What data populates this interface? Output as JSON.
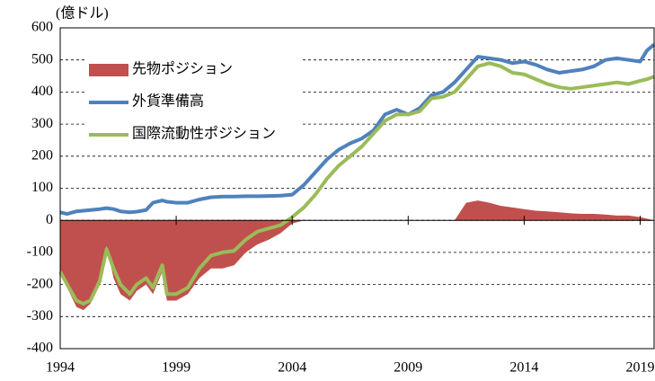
{
  "chart_data": {
    "type": "line",
    "y_label": "(億ドル)",
    "x": [
      1994,
      1994.3,
      1994.7,
      1995,
      1995.3,
      1995.7,
      1996,
      1996.3,
      1996.6,
      1997,
      1997.3,
      1997.7,
      1998,
      1998.4,
      1998.6,
      1999,
      1999.5,
      2000,
      2000.5,
      2001,
      2001.5,
      2002,
      2002.5,
      2003,
      2003.5,
      2004,
      2004.5,
      2005,
      2005.5,
      2006,
      2006.5,
      2007,
      2007.5,
      2008,
      2008.5,
      2009,
      2009.5,
      2010,
      2010.5,
      2011,
      2011.5,
      2012,
      2012.5,
      2013,
      2013.5,
      2014,
      2014.5,
      2015,
      2015.5,
      2016,
      2016.5,
      2017,
      2017.5,
      2018,
      2018.5,
      2019,
      2019.3,
      2019.6
    ],
    "series": [
      {
        "name": "先物ポジション",
        "kind": "area",
        "color": "#c0504d",
        "values": [
          -170,
          -210,
          -270,
          -280,
          -260,
          -200,
          -80,
          -180,
          -230,
          -250,
          -220,
          -200,
          -230,
          -160,
          -250,
          -250,
          -230,
          -180,
          -150,
          -150,
          -140,
          -100,
          -75,
          -60,
          -40,
          -10,
          0,
          0,
          0,
          0,
          0,
          0,
          0,
          0,
          0,
          0,
          0,
          0,
          0,
          0,
          55,
          62,
          55,
          45,
          40,
          35,
          30,
          28,
          25,
          22,
          20,
          20,
          18,
          15,
          15,
          10,
          5,
          0
        ]
      },
      {
        "name": "外貨準備高",
        "kind": "line",
        "color": "#4f81bd",
        "values": [
          25,
          20,
          28,
          30,
          32,
          35,
          38,
          35,
          28,
          25,
          27,
          32,
          55,
          62,
          58,
          55,
          55,
          65,
          72,
          74,
          74,
          75,
          75,
          76,
          77,
          80,
          110,
          150,
          190,
          220,
          240,
          255,
          280,
          330,
          345,
          330,
          350,
          390,
          400,
          430,
          470,
          510,
          505,
          500,
          490,
          495,
          485,
          470,
          460,
          465,
          470,
          480,
          500,
          505,
          500,
          495,
          530,
          548
        ]
      },
      {
        "name": "国際流動性ポジション",
        "kind": "line",
        "color": "#9bbb59",
        "values": [
          -160,
          -200,
          -250,
          -260,
          -250,
          -190,
          -90,
          -150,
          -200,
          -230,
          -200,
          -180,
          -210,
          -140,
          -230,
          -230,
          -210,
          -150,
          -110,
          -100,
          -95,
          -60,
          -35,
          -25,
          -15,
          10,
          40,
          80,
          130,
          170,
          200,
          230,
          270,
          310,
          330,
          330,
          340,
          380,
          385,
          400,
          440,
          480,
          490,
          480,
          460,
          455,
          440,
          425,
          415,
          410,
          415,
          420,
          425,
          430,
          425,
          435,
          440,
          448
        ]
      }
    ],
    "xlim": [
      1994,
      2019.6
    ],
    "xticks": [
      1994,
      1999,
      2004,
      2009,
      2014,
      2019
    ],
    "ylim": [
      -400,
      600
    ],
    "yticks": [
      -400,
      -300,
      -200,
      -100,
      0,
      100,
      200,
      300,
      400,
      500,
      600
    ],
    "grid": true,
    "legend": "upper left"
  }
}
